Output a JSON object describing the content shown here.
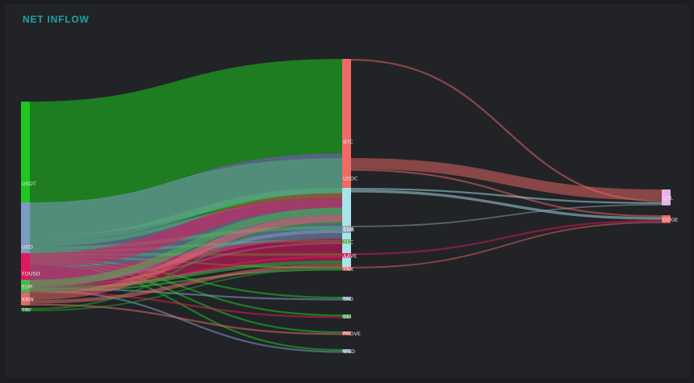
{
  "header": {
    "title": "NET INFLOW"
  },
  "chart_data": {
    "type": "sankey",
    "title": "NET INFLOW",
    "units": "relative flow (approximate, read from band widths)",
    "nodes": [
      {
        "id": "USDT",
        "label": "USDT",
        "column": 0,
        "color": "#1ec71e"
      },
      {
        "id": "USD",
        "label": "USD",
        "column": 0,
        "color": "#7e9bc4"
      },
      {
        "id": "FDUSD",
        "label": "FDUSD",
        "column": 0,
        "color": "#e0195f"
      },
      {
        "id": "EUR",
        "label": "EUR",
        "column": 0,
        "color": "#4fb34f"
      },
      {
        "id": "KRW",
        "label": "KRW",
        "column": 0,
        "color": "#e06a66"
      },
      {
        "id": "TRY",
        "label": "TRY",
        "column": 0,
        "color": "#2c9b2c"
      },
      {
        "id": "BTC",
        "label": "BTC",
        "column": 1,
        "color": "#f26a66"
      },
      {
        "id": "USDC",
        "label": "USDC",
        "column": 1,
        "color": "#f26a66"
      },
      {
        "id": "ETH",
        "label": "ETH",
        "column": 1,
        "color": "#a8e4ea"
      },
      {
        "id": "BNB",
        "label": "BNB",
        "column": 1,
        "color": "#8fa3b8"
      },
      {
        "id": "ZEC",
        "label": "ZEC",
        "column": 1,
        "color": "#4fb34f"
      },
      {
        "id": "AAVE",
        "label": "AAVE",
        "column": 1,
        "color": "#e0195f"
      },
      {
        "id": "TRX",
        "label": "TRX",
        "column": 1,
        "color": "#f26a66"
      },
      {
        "id": "TAO",
        "label": "TAO",
        "column": 1,
        "color": "#8fa3b8"
      },
      {
        "id": "SEI",
        "label": "SEI",
        "column": 1,
        "color": "#4fb34f"
      },
      {
        "id": "PROVE",
        "label": "PROVE",
        "column": 1,
        "color": "#f26a66"
      },
      {
        "id": "WLD",
        "label": "WLD",
        "column": 1,
        "color": "#8fa3b8"
      },
      {
        "id": "SOL",
        "label": "SOL",
        "column": 2,
        "color": "#e8b4e8"
      },
      {
        "id": "DOGE",
        "label": "DOGE",
        "column": 2,
        "color": "#f26a66"
      }
    ],
    "links": [
      {
        "source": "USDT",
        "target": "BTC",
        "value": 52
      },
      {
        "source": "USDT",
        "target": "USDC",
        "value": 22
      },
      {
        "source": "USDT",
        "target": "ETH",
        "value": 6
      },
      {
        "source": "USDT",
        "target": "BNB",
        "value": 2
      },
      {
        "source": "USDT",
        "target": "ZEC",
        "value": 1.5
      },
      {
        "source": "USDT",
        "target": "AAVE",
        "value": 1.5
      },
      {
        "source": "USDT",
        "target": "TRX",
        "value": 1
      },
      {
        "source": "USDT",
        "target": "TAO",
        "value": 1
      },
      {
        "source": "USDT",
        "target": "SEI",
        "value": 1
      },
      {
        "source": "USDT",
        "target": "PROVE",
        "value": 1
      },
      {
        "source": "USDT",
        "target": "WLD",
        "value": 1
      },
      {
        "source": "USD",
        "target": "BTC",
        "value": 22
      },
      {
        "source": "USD",
        "target": "ETH",
        "value": 22
      },
      {
        "source": "USD",
        "target": "BNB",
        "value": 2
      },
      {
        "source": "USD",
        "target": "ZEC",
        "value": 1
      },
      {
        "source": "USD",
        "target": "TAO",
        "value": 1
      },
      {
        "source": "USD",
        "target": "WLD",
        "value": 1
      },
      {
        "source": "FDUSD",
        "target": "BTC",
        "value": 8
      },
      {
        "source": "FDUSD",
        "target": "ETH",
        "value": 12
      },
      {
        "source": "FDUSD",
        "target": "AAVE",
        "value": 1
      },
      {
        "source": "FDUSD",
        "target": "SEI",
        "value": 1
      },
      {
        "source": "EUR",
        "target": "BTC",
        "value": 4
      },
      {
        "source": "EUR",
        "target": "ETH",
        "value": 2
      },
      {
        "source": "EUR",
        "target": "TRX",
        "value": 1
      },
      {
        "source": "KRW",
        "target": "BTC",
        "value": 4
      },
      {
        "source": "KRW",
        "target": "ETH",
        "value": 2
      },
      {
        "source": "KRW",
        "target": "PROVE",
        "value": 1
      },
      {
        "source": "TRY",
        "target": "BTC",
        "value": 1
      },
      {
        "source": "TRY",
        "target": "ETH",
        "value": 0.8
      },
      {
        "source": "USDC",
        "target": "SOL",
        "value": 6
      },
      {
        "source": "USDC",
        "target": "DOGE",
        "value": 1
      },
      {
        "source": "BTC",
        "target": "SOL",
        "value": 1
      },
      {
        "source": "ETH",
        "target": "SOL",
        "value": 1
      },
      {
        "source": "ETH",
        "target": "DOGE",
        "value": 1.5
      },
      {
        "source": "BNB",
        "target": "SOL",
        "value": 0.8
      },
      {
        "source": "AAVE",
        "target": "DOGE",
        "value": 1
      },
      {
        "source": "TRX",
        "target": "DOGE",
        "value": 0.8
      }
    ]
  }
}
